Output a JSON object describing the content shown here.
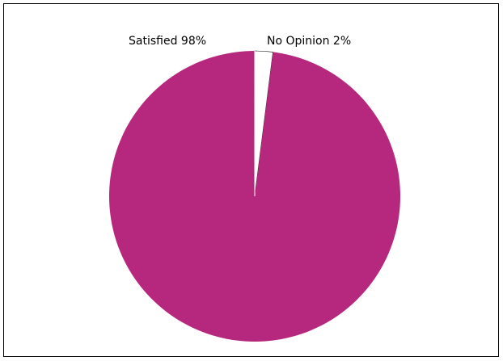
{
  "chart_data": {
    "type": "pie",
    "title": "",
    "slices": [
      {
        "label": "Satisfied 98%",
        "value": 98,
        "color": "#b5287e"
      },
      {
        "label": "No Opinion 2%",
        "value": 2,
        "color": "#ffffff"
      }
    ],
    "start_angle": "12 o'clock",
    "direction": "clockwise from No Opinion",
    "legend": "none"
  }
}
